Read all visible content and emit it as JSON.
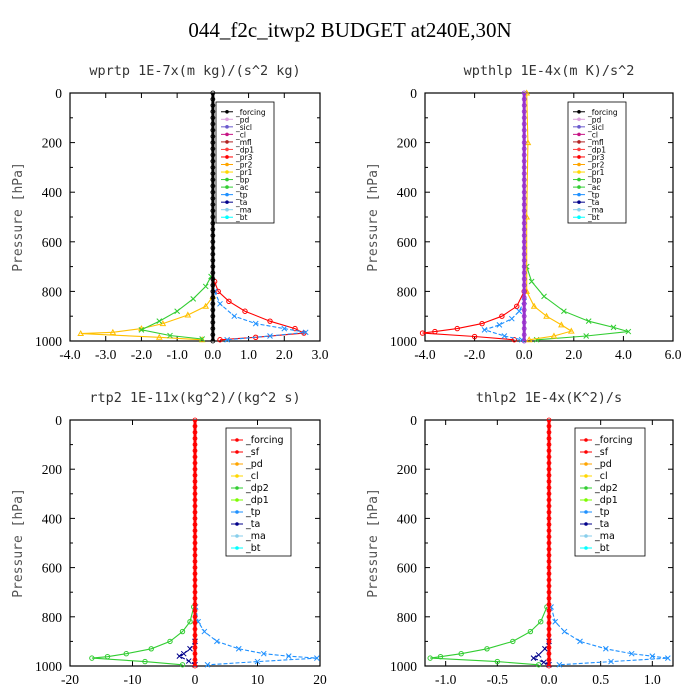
{
  "page_title": "044_f2c_itwp2  BUDGET at240E,30N",
  "chart_data": [
    {
      "type": "line",
      "title": "wprtp  1E-7x(m kg)/(s^2 kg)",
      "ylabel": "Pressure [hPa]",
      "xlim": [
        -4.0,
        3.0
      ],
      "ylim": [
        1000,
        0
      ],
      "xticks": [
        "-4.0",
        "-3.0",
        "-2.0",
        "-1.0",
        "0.0",
        "1.0",
        "2.0",
        "3.0"
      ],
      "yticks": [
        "0",
        "200",
        "400",
        "600",
        "800",
        "1000"
      ],
      "legend_entries": [
        "_forcing",
        "_pd",
        "_sicl",
        "_cl",
        "_mfl",
        "_dp1",
        "_pr3",
        "_pr2",
        "_pr1",
        "_bp",
        "_ac",
        "_tp",
        "_ta",
        "_ma",
        "_bt"
      ],
      "series": [
        {
          "name": "_dp1",
          "color": "#ff0000",
          "marker": "o",
          "points": [
            [
              0.05,
              760
            ],
            [
              0.15,
              800
            ],
            [
              0.45,
              840
            ],
            [
              0.9,
              880
            ],
            [
              1.6,
              920
            ],
            [
              2.3,
              950
            ],
            [
              2.55,
              968
            ],
            [
              1.2,
              985
            ],
            [
              0.2,
              995
            ]
          ]
        },
        {
          "name": "_pr1",
          "color": "#ffc000",
          "marker": "^",
          "points": [
            [
              0,
              820
            ],
            [
              -0.2,
              860
            ],
            [
              -0.7,
              895
            ],
            [
              -1.4,
              930
            ],
            [
              -2.0,
              950
            ],
            [
              -2.8,
              965
            ],
            [
              -3.7,
              970
            ],
            [
              -1.5,
              985
            ],
            [
              -0.3,
              995
            ]
          ]
        },
        {
          "name": "_ac",
          "color": "#32cd32",
          "marker": "x",
          "points": [
            [
              -0.05,
              740
            ],
            [
              -0.2,
              780
            ],
            [
              -0.55,
              830
            ],
            [
              -1.0,
              880
            ],
            [
              -1.5,
              920
            ],
            [
              -2.0,
              955
            ],
            [
              -1.2,
              978
            ],
            [
              -0.3,
              992
            ]
          ]
        },
        {
          "name": "_tp",
          "color": "#1e90ff",
          "marker": "*",
          "points": [
            [
              0.05,
              800
            ],
            [
              0.2,
              850
            ],
            [
              0.6,
              900
            ],
            [
              1.2,
              930
            ],
            [
              2.0,
              950
            ],
            [
              2.6,
              965
            ],
            [
              1.6,
              980
            ],
            [
              0.4,
              995
            ]
          ]
        },
        {
          "name": "_forcing",
          "color": "#000000",
          "marker": "o",
          "points": [
            [
              0,
              0
            ],
            [
              0,
              1000
            ]
          ]
        }
      ]
    },
    {
      "type": "line",
      "title": "wpthlp  1E-4x(m K)/s^2",
      "ylabel": "Pressure [hPa]",
      "xlim": [
        -4.0,
        6.0
      ],
      "ylim": [
        1000,
        0
      ],
      "xticks": [
        "-4.0",
        "-2.0",
        "0.0",
        "2.0",
        "4.0",
        "6.0"
      ],
      "yticks": [
        "0",
        "200",
        "400",
        "600",
        "800",
        "1000"
      ],
      "legend_entries": [
        "_forcing",
        "_pd",
        "_sicl",
        "_cl",
        "_mfl",
        "_dp1",
        "_pr3",
        "_pr2",
        "_pr1",
        "_bp",
        "_ac",
        "_tp",
        "_ta",
        "_ma",
        "_bt"
      ],
      "series": [
        {
          "name": "_ac",
          "color": "#32cd32",
          "marker": "x",
          "points": [
            [
              0.1,
              700
            ],
            [
              0.3,
              760
            ],
            [
              0.8,
              820
            ],
            [
              1.6,
              880
            ],
            [
              2.6,
              920
            ],
            [
              3.6,
              945
            ],
            [
              4.2,
              962
            ],
            [
              2.5,
              980
            ],
            [
              0.5,
              995
            ]
          ]
        },
        {
          "name": "_pr1",
          "color": "#ffc000",
          "marker": "^",
          "points": [
            [
              0.1,
              0
            ],
            [
              0.15,
              200
            ],
            [
              0.1,
              500
            ],
            [
              0.1,
              800
            ],
            [
              0.4,
              860
            ],
            [
              0.9,
              900
            ],
            [
              1.5,
              935
            ],
            [
              1.9,
              960
            ],
            [
              1.2,
              980
            ],
            [
              0.2,
              995
            ]
          ]
        },
        {
          "name": "_dp1",
          "color": "#ff0000",
          "marker": "o",
          "points": [
            [
              0,
              800
            ],
            [
              -0.3,
              860
            ],
            [
              -0.9,
              900
            ],
            [
              -1.7,
              930
            ],
            [
              -2.7,
              950
            ],
            [
              -3.6,
              962
            ],
            [
              -4.1,
              968
            ],
            [
              -2.0,
              982
            ],
            [
              -0.4,
              995
            ]
          ]
        },
        {
          "name": "_tp",
          "color": "#1e90ff",
          "marker": "*",
          "points": [
            [
              0,
              840
            ],
            [
              -0.2,
              880
            ],
            [
              -0.5,
              910
            ],
            [
              -1.0,
              935
            ],
            [
              -1.6,
              955
            ],
            [
              -0.8,
              980
            ],
            [
              -0.1,
              995
            ]
          ]
        },
        {
          "name": "_bp",
          "color": "#9932cc",
          "marker": "o",
          "points": [
            [
              0,
              0
            ],
            [
              0,
              1000
            ]
          ]
        }
      ]
    },
    {
      "type": "line",
      "title": "rtp2  1E-11x(kg^2)/(kg^2 s)",
      "ylabel": "Pressure [hPa]",
      "xlim": [
        -20,
        20
      ],
      "ylim": [
        1000,
        0
      ],
      "xticks": [
        "-20",
        "-10",
        "0",
        "10",
        "20"
      ],
      "yticks": [
        "0",
        "200",
        "400",
        "600",
        "800",
        "1000"
      ],
      "legend_entries": [
        "_forcing",
        "_sf",
        "_pd",
        "_cl",
        "_dp2",
        "_dp1",
        "_tp",
        "_ta",
        "_ma",
        "_bt"
      ],
      "series": [
        {
          "name": "_dp1",
          "color": "#32cd32",
          "marker": "o",
          "points": [
            [
              -0.2,
              760
            ],
            [
              -0.8,
              820
            ],
            [
              -2.0,
              860
            ],
            [
              -4.0,
              900
            ],
            [
              -7.0,
              930
            ],
            [
              -11.0,
              950
            ],
            [
              -14.0,
              962
            ],
            [
              -16.5,
              968
            ],
            [
              -8.0,
              982
            ],
            [
              -2.0,
              995
            ]
          ]
        },
        {
          "name": "_tp",
          "color": "#1e90ff",
          "marker": "*",
          "points": [
            [
              0.1,
              760
            ],
            [
              0.5,
              820
            ],
            [
              1.5,
              860
            ],
            [
              3.5,
              900
            ],
            [
              7.0,
              930
            ],
            [
              11.0,
              950
            ],
            [
              15.0,
              960
            ],
            [
              19.5,
              968
            ],
            [
              10.0,
              982
            ],
            [
              2.0,
              995
            ]
          ]
        },
        {
          "name": "_ta",
          "color": "#00008b",
          "marker": "+",
          "points": [
            [
              0,
              900
            ],
            [
              -0.8,
              930
            ],
            [
              -1.8,
              950
            ],
            [
              -2.5,
              960
            ],
            [
              -1.0,
              980
            ],
            [
              0,
              995
            ]
          ]
        },
        {
          "name": "_forcing",
          "color": "#ff0000",
          "marker": "o",
          "points": [
            [
              0,
              0
            ],
            [
              0,
              1000
            ]
          ]
        }
      ]
    },
    {
      "type": "line",
      "title": "thlp2  1E-4x(K^2)/s",
      "ylabel": "Pressure [hPa]",
      "xlim": [
        -1.2,
        1.2
      ],
      "ylim": [
        1000,
        0
      ],
      "xticks": [
        "-1.0",
        "-0.5",
        "0.0",
        "0.5",
        "1.0"
      ],
      "yticks": [
        "0",
        "200",
        "400",
        "600",
        "800",
        "1000"
      ],
      "legend_entries": [
        "_forcing",
        "_sf",
        "_pd",
        "_cl",
        "_dp2",
        "_dp1",
        "_tp",
        "_ta",
        "_ma",
        "_bt"
      ],
      "series": [
        {
          "name": "_dp1",
          "color": "#32cd32",
          "marker": "o",
          "points": [
            [
              -0.02,
              760
            ],
            [
              -0.08,
              820
            ],
            [
              -0.18,
              860
            ],
            [
              -0.35,
              900
            ],
            [
              -0.6,
              930
            ],
            [
              -0.85,
              950
            ],
            [
              -1.05,
              962
            ],
            [
              -1.15,
              968
            ],
            [
              -0.5,
              982
            ],
            [
              -0.1,
              995
            ]
          ]
        },
        {
          "name": "_tp",
          "color": "#1e90ff",
          "marker": "*",
          "points": [
            [
              0.02,
              760
            ],
            [
              0.06,
              820
            ],
            [
              0.15,
              860
            ],
            [
              0.3,
              900
            ],
            [
              0.55,
              930
            ],
            [
              0.8,
              950
            ],
            [
              1.0,
              960
            ],
            [
              1.15,
              968
            ],
            [
              0.6,
              982
            ],
            [
              0.1,
              995
            ]
          ]
        },
        {
          "name": "_ta",
          "color": "#00008b",
          "marker": "+",
          "points": [
            [
              0,
              900
            ],
            [
              -0.04,
              930
            ],
            [
              -0.1,
              955
            ],
            [
              -0.15,
              968
            ],
            [
              -0.05,
              985
            ],
            [
              0,
              995
            ]
          ]
        },
        {
          "name": "_forcing",
          "color": "#ff0000",
          "marker": "o",
          "points": [
            [
              0,
              0
            ],
            [
              0,
              1000
            ]
          ]
        }
      ]
    }
  ]
}
